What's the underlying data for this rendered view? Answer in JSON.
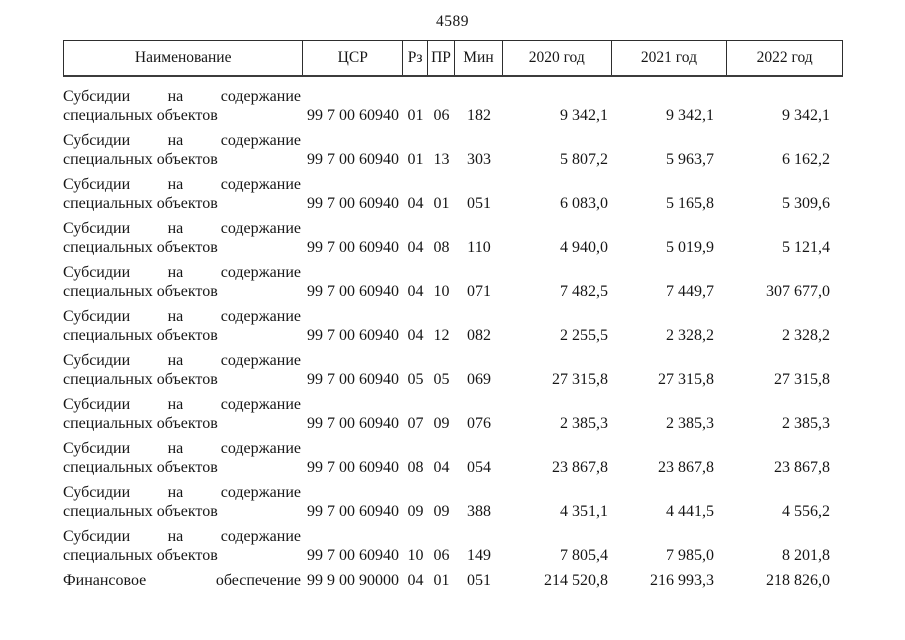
{
  "page": {
    "number": "4589"
  },
  "table": {
    "columns": [
      {
        "key": "name",
        "label": "Наименование"
      },
      {
        "key": "csr",
        "label": "ЦСР"
      },
      {
        "key": "rz",
        "label": "Рз"
      },
      {
        "key": "pr",
        "label": "ПР"
      },
      {
        "key": "min",
        "label": "Мин"
      },
      {
        "key": "y2020",
        "label": "2020 год"
      },
      {
        "key": "y2021",
        "label": "2021 год"
      },
      {
        "key": "y2022",
        "label": "2022 год"
      }
    ],
    "rows": [
      {
        "name_line1": "Субсидии на содержание",
        "name_line2": "специальных объектов",
        "csr": "99 7 00 60940",
        "rz": "01",
        "pr": "06",
        "min": "182",
        "y2020": "9 342,1",
        "y2021": "9 342,1",
        "y2022": "9 342,1"
      },
      {
        "name_line1": "Субсидии на содержание",
        "name_line2": "специальных объектов",
        "csr": "99 7 00 60940",
        "rz": "01",
        "pr": "13",
        "min": "303",
        "y2020": "5 807,2",
        "y2021": "5 963,7",
        "y2022": "6 162,2"
      },
      {
        "name_line1": "Субсидии на содержание",
        "name_line2": "специальных объектов",
        "csr": "99 7 00 60940",
        "rz": "04",
        "pr": "01",
        "min": "051",
        "y2020": "6 083,0",
        "y2021": "5 165,8",
        "y2022": "5 309,6"
      },
      {
        "name_line1": "Субсидии на содержание",
        "name_line2": "специальных объектов",
        "csr": "99 7 00 60940",
        "rz": "04",
        "pr": "08",
        "min": "110",
        "y2020": "4 940,0",
        "y2021": "5 019,9",
        "y2022": "5 121,4"
      },
      {
        "name_line1": "Субсидии на содержание",
        "name_line2": "специальных объектов",
        "csr": "99 7 00 60940",
        "rz": "04",
        "pr": "10",
        "min": "071",
        "y2020": "7 482,5",
        "y2021": "7 449,7",
        "y2022": "307 677,0"
      },
      {
        "name_line1": "Субсидии на содержание",
        "name_line2": "специальных объектов",
        "csr": "99 7 00 60940",
        "rz": "04",
        "pr": "12",
        "min": "082",
        "y2020": "2 255,5",
        "y2021": "2 328,2",
        "y2022": "2 328,2"
      },
      {
        "name_line1": "Субсидии на содержание",
        "name_line2": "специальных объектов",
        "csr": "99 7 00 60940",
        "rz": "05",
        "pr": "05",
        "min": "069",
        "y2020": "27 315,8",
        "y2021": "27 315,8",
        "y2022": "27 315,8"
      },
      {
        "name_line1": "Субсидии на содержание",
        "name_line2": "специальных объектов",
        "csr": "99 7 00 60940",
        "rz": "07",
        "pr": "09",
        "min": "076",
        "y2020": "2 385,3",
        "y2021": "2 385,3",
        "y2022": "2 385,3"
      },
      {
        "name_line1": "Субсидии на содержание",
        "name_line2": "специальных объектов",
        "csr": "99 7 00 60940",
        "rz": "08",
        "pr": "04",
        "min": "054",
        "y2020": "23 867,8",
        "y2021": "23 867,8",
        "y2022": "23 867,8"
      },
      {
        "name_line1": "Субсидии на содержание",
        "name_line2": "специальных объектов",
        "csr": "99 7 00 60940",
        "rz": "09",
        "pr": "09",
        "min": "388",
        "y2020": "4 351,1",
        "y2021": "4 441,5",
        "y2022": "4 556,2"
      },
      {
        "name_line1": "Субсидии на содержание",
        "name_line2": "специальных объектов",
        "csr": "99 7 00 60940",
        "rz": "10",
        "pr": "06",
        "min": "149",
        "y2020": "7 805,4",
        "y2021": "7 985,0",
        "y2022": "8 201,8"
      },
      {
        "name_line1": "Финансовое обеспечение",
        "name_line2": "",
        "csr": "99 9 00 90000",
        "rz": "04",
        "pr": "01",
        "min": "051",
        "y2020": "214 520,8",
        "y2021": "216 993,3",
        "y2022": "218 826,0"
      }
    ]
  }
}
